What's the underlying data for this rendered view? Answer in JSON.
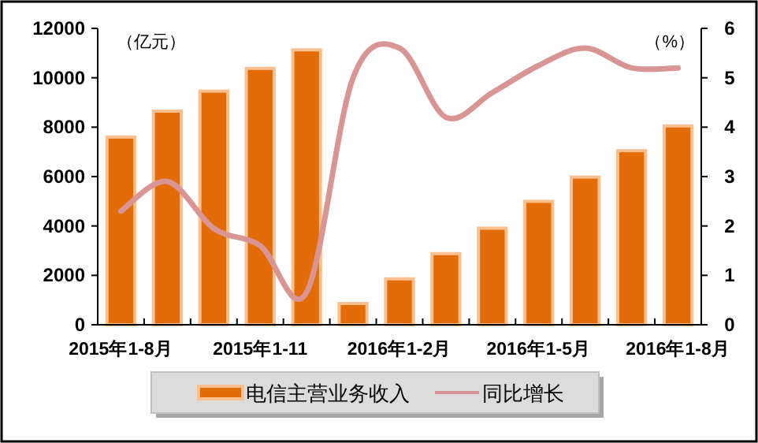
{
  "chart_data": {
    "type": "bar",
    "ylabel": "（亿元）",
    "y2label": "（%）",
    "categories": [
      "2015年1-8月",
      null,
      null,
      "2015年1-11",
      null,
      null,
      "2016年1-2月",
      null,
      null,
      "2016年1-5月",
      null,
      null,
      "2016年1-8月"
    ],
    "series": [
      {
        "name": "电信主营业务收入",
        "color": "#e36c09",
        "values": [
          7600,
          8650,
          9460,
          10380,
          11130,
          860,
          1860,
          2880,
          3910,
          5000,
          5980,
          7050,
          8050
        ]
      },
      {
        "name": "同比增长",
        "type": "line",
        "axis": "y2",
        "color": "#d99594",
        "values": [
          2.3,
          2.9,
          1.95,
          1.6,
          0.66,
          5.0,
          5.6,
          4.2,
          4.7,
          5.25,
          5.6,
          5.2,
          5.2
        ]
      }
    ],
    "ylim": [
      0,
      12000
    ],
    "yticks": [
      0,
      2000,
      4000,
      6000,
      8000,
      10000,
      12000
    ],
    "y2lim": [
      0,
      6
    ],
    "y2ticks": [
      0,
      1,
      2,
      3,
      4,
      5,
      6
    ],
    "grid": false,
    "legend": "bottom"
  }
}
